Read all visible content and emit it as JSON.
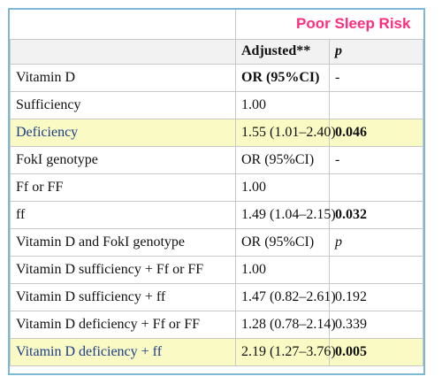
{
  "table": {
    "title": "Poor Sleep Risk",
    "col_adjusted": "Adjusted**",
    "col_p": "p",
    "rows": [
      {
        "label": "Vitamin D",
        "value": "OR (95%CI)",
        "p": "-"
      },
      {
        "label": "Sufficiency",
        "value": "1.00",
        "p": ""
      },
      {
        "label": "Deficiency",
        "value": "1.55 (1.01–2.40)",
        "p": "0.046"
      },
      {
        "label": "FokI genotype",
        "value": "OR (95%CI)",
        "p": "-"
      },
      {
        "label": "Ff or FF",
        "value": "1.00",
        "p": ""
      },
      {
        "label": "ff",
        "value": "1.49 (1.04–2.15)",
        "p": "0.032"
      },
      {
        "label": "Vitamin D and FokI genotype",
        "value": "OR (95%CI)",
        "p": "p"
      },
      {
        "label": "Vitamin D sufficiency + Ff or FF",
        "value": "1.00",
        "p": ""
      },
      {
        "label": "Vitamin D sufficiency + ff",
        "value": "1.47 (0.82–2.61)",
        "p": "0.192"
      },
      {
        "label": "Vitamin D deficiency + Ff or FF",
        "value": "1.28 (0.78–2.14)",
        "p": "0.339"
      },
      {
        "label": "Vitamin D deficiency + ff",
        "value": "2.19 (1.27–3.76)",
        "p": "0.005"
      }
    ],
    "highlight_color": "#fafac5",
    "title_color": "#ff2e7d",
    "border_color": "#7db8d4"
  }
}
